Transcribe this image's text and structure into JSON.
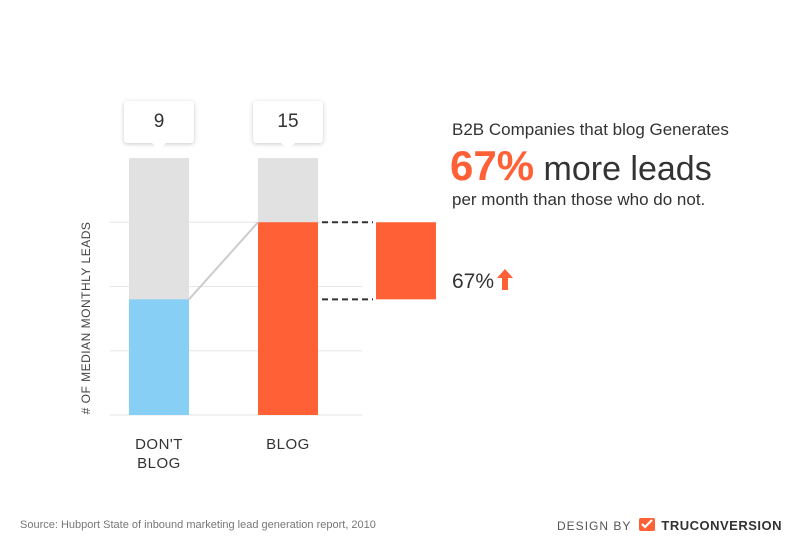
{
  "chart_data": {
    "type": "bar",
    "categories": [
      "DON'T\nBLOG",
      "BLOG"
    ],
    "values": [
      9,
      15
    ],
    "value_labels": [
      "9",
      "15"
    ],
    "ylabel": "# OF MEDIAN MONTHLY LEADS",
    "xlabel": "",
    "ylim": [
      0,
      20
    ],
    "grid": true,
    "colors": {
      "dont_blog": "#87cff5",
      "blog": "#ff6035",
      "track": "#e1e1e1",
      "grid": "#e6e6e6",
      "connector": "#cccccc",
      "difference": "#ff6035"
    },
    "difference_label": "67%"
  },
  "headline": {
    "line1": "B2B Companies that blog Generates",
    "pct": "67%",
    "rest": " more leads",
    "line3": "per month than those who do not."
  },
  "icons": {
    "arrow": "up-arrow-icon",
    "logo": "brand-logo-icon"
  },
  "footer": {
    "source": "Source: Hubport State of inbound marketing lead generation report, 2010",
    "design_by": "DESIGN BY",
    "brand": "TRUCONVERSION"
  }
}
